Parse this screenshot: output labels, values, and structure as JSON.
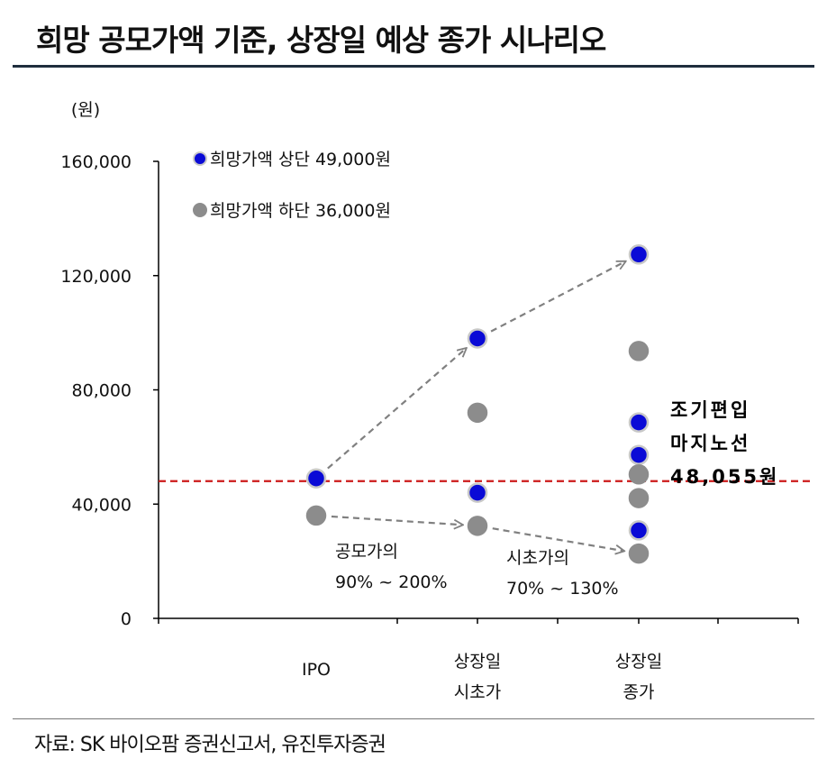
{
  "title": "희망 공모가액 기준, 상장일 예상 종가 시나리오",
  "source": "자료: SK 바이오팜 증권신고서, 유진투자증권",
  "chart_data": {
    "type": "scatter",
    "ylabel": "(원)",
    "ylim": [
      0,
      160000
    ],
    "yticks": [
      0,
      40000,
      80000,
      120000,
      160000
    ],
    "ytick_labels": [
      "0",
      "40,000",
      "80,000",
      "120,000",
      "160,000"
    ],
    "categories": [
      {
        "id": "ipo",
        "lines": [
          "IPO"
        ]
      },
      {
        "id": "open",
        "lines": [
          "상장일",
          "시초가"
        ]
      },
      {
        "id": "close",
        "lines": [
          "상장일",
          "종가"
        ]
      }
    ],
    "series": [
      {
        "name": "희망가액 상단 49,000원",
        "color": "#0a0ad6",
        "edge": "#c8c8c8",
        "points": [
          [
            0,
            49000
          ],
          [
            1,
            98000
          ],
          [
            1,
            44000
          ],
          [
            2,
            127400
          ],
          [
            2,
            68600
          ],
          [
            2,
            57200
          ],
          [
            2,
            30800
          ]
        ]
      },
      {
        "name": "희망가액 하단 36,000원",
        "color": "#8c8c8c",
        "edge": "#8c8c8c",
        "points": [
          [
            0,
            36000
          ],
          [
            1,
            72000
          ],
          [
            1,
            32400
          ],
          [
            2,
            93600
          ],
          [
            2,
            50400
          ],
          [
            2,
            42100
          ],
          [
            2,
            22700
          ]
        ]
      }
    ],
    "reference_line": {
      "value": 48055,
      "color": "#cc1a1a",
      "label_lines": [
        "조기편입",
        "마지노선",
        "48,055원"
      ]
    },
    "annotations": [
      {
        "lines": [
          "공모가의",
          "90% ~ 200%"
        ]
      },
      {
        "lines": [
          "시초가의",
          "70% ~ 130%"
        ]
      }
    ],
    "arrows": [
      {
        "from": [
          0,
          49000
        ],
        "to": [
          1,
          98000
        ]
      },
      {
        "from": [
          1,
          98000
        ],
        "to": [
          2,
          127400
        ]
      },
      {
        "from": [
          0,
          36000
        ],
        "to": [
          1,
          32400
        ]
      },
      {
        "from": [
          1,
          32400
        ],
        "to": [
          2,
          22700
        ]
      }
    ],
    "grid": false,
    "legend_position": "top-left"
  }
}
